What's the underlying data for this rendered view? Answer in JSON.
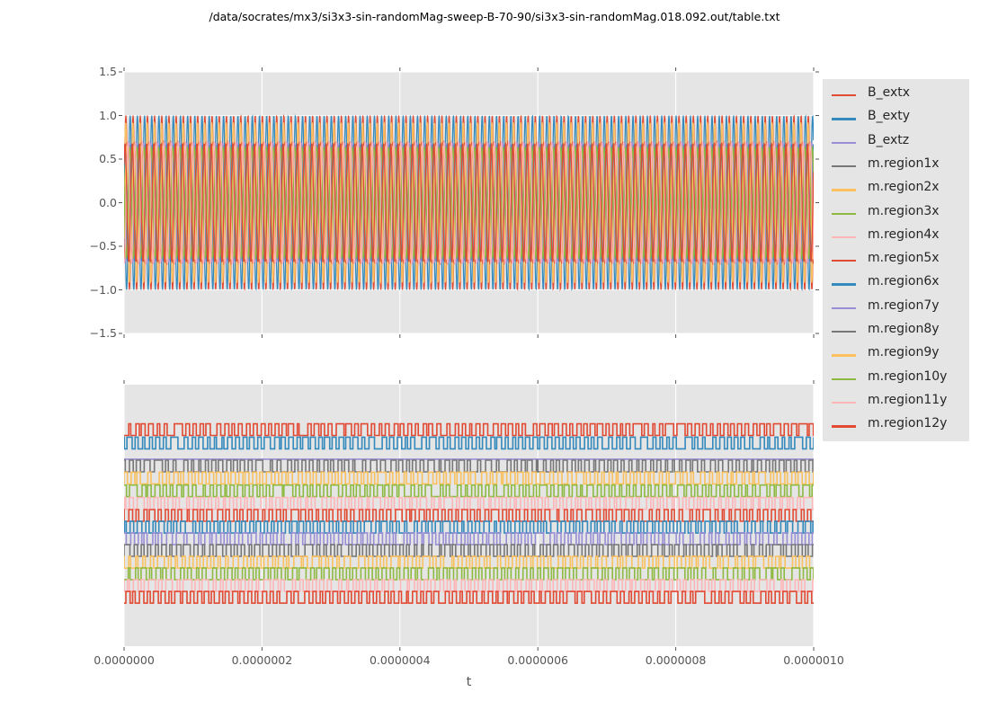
{
  "title": "/data/socrates/mx3/si3x3-sin-randomMag-sweep-B-70-90/si3x3-sin-randomMag.018.092.out/table.txt",
  "xlabel": "t",
  "style": {
    "figure_bg": "#ffffff",
    "axes_bg": "#e5e5e5",
    "grid_color": "#ffffff",
    "tick_color": "#555555",
    "tick_label_color": "#555555",
    "title_color": "#000000",
    "legend_bg": "#e5e5e5",
    "legend_text_color": "#262626"
  },
  "axes": {
    "x_tick_labels": [
      "0.0000000",
      "0.0000002",
      "0.0000004",
      "0.0000006",
      "0.0000008",
      "0.0000010"
    ],
    "top_y_tick_labels": [
      "1.5",
      "1.0",
      "0.5",
      "0.0",
      "−0.5",
      "−1.0",
      "−1.5"
    ],
    "bottom_y_tick_labels": []
  },
  "legend": {
    "items": [
      {
        "label": "B_extx",
        "color": "#E24A33"
      },
      {
        "label": "B_exty",
        "color": "#348ABD"
      },
      {
        "label": "B_extz",
        "color": "#988ED5"
      },
      {
        "label": "m.region1x",
        "color": "#777777"
      },
      {
        "label": "m.region2x",
        "color": "#FBC15E"
      },
      {
        "label": "m.region3x",
        "color": "#8EBA42"
      },
      {
        "label": "m.region4x",
        "color": "#FFB5B8"
      },
      {
        "label": "m.region5x",
        "color": "#E24A33"
      },
      {
        "label": "m.region6x",
        "color": "#348ABD"
      },
      {
        "label": "m.region7y",
        "color": "#988ED5"
      },
      {
        "label": "m.region8y",
        "color": "#777777"
      },
      {
        "label": "m.region9y",
        "color": "#FBC15E"
      },
      {
        "label": "m.region10y",
        "color": "#8EBA42"
      },
      {
        "label": "m.region11y",
        "color": "#FFB5B8"
      },
      {
        "label": "m.region12y",
        "color": "#E24A33"
      }
    ]
  },
  "chart_data": [
    {
      "type": "line",
      "subplot": "top",
      "xlim": [
        0,
        1e-06
      ],
      "ylim": [
        -1.5,
        1.5
      ],
      "x_ticks": [
        0,
        2e-07,
        4e-07,
        6e-07,
        8e-07,
        1e-06
      ],
      "y_ticks": [
        1.5,
        1.0,
        0.5,
        0.0,
        -0.5,
        -1.0,
        -1.5
      ],
      "grid": "both",
      "legend_position": "outside-right",
      "note": "dense sinusoidal oscillations, ~96 cycles over 1e-6 s, envelope -1..1",
      "series": [
        {
          "name": "B_extx",
          "color": "#E24A33",
          "waveform": "sine",
          "amplitude": 1.0,
          "cycles": 96,
          "phase": 0.0
        },
        {
          "name": "B_exty",
          "color": "#348ABD",
          "waveform": "sine",
          "amplitude": 1.0,
          "cycles": 96,
          "phase": 2.5
        },
        {
          "name": "B_extz",
          "color": "#988ED5",
          "waveform": "sine",
          "amplitude": 0.65,
          "cycles": 96,
          "phase": 1.2
        },
        {
          "name": "m.region1x",
          "color": "#777777",
          "waveform": "sine",
          "amplitude": 0.68,
          "cycles": 96,
          "phase": 0.4
        },
        {
          "name": "m.region2x",
          "color": "#FBC15E",
          "waveform": "sine",
          "amplitude": 0.92,
          "cycles": 96,
          "phase": 0.15
        },
        {
          "name": "m.region3x",
          "color": "#8EBA42",
          "waveform": "sine",
          "amplitude": 0.66,
          "cycles": 96,
          "phase": 2.1
        },
        {
          "name": "m.region4x",
          "color": "#FFB5B8",
          "waveform": "sine",
          "amplitude": 0.64,
          "cycles": 96,
          "phase": 3.9
        },
        {
          "name": "m.region5x",
          "color": "#E24A33",
          "waveform": "sine",
          "amplitude": 0.7,
          "cycles": 96,
          "phase": 5.1
        },
        {
          "name": "m.region6x",
          "color": "#348ABD",
          "waveform": "sine",
          "amplitude": 0.67,
          "cycles": 96,
          "phase": 1.7
        },
        {
          "name": "m.region7y",
          "color": "#988ED5",
          "waveform": "sine",
          "amplitude": 0.69,
          "cycles": 96,
          "phase": 3.2
        },
        {
          "name": "m.region8y",
          "color": "#777777",
          "waveform": "sine",
          "amplitude": 0.66,
          "cycles": 96,
          "phase": 0.9
        },
        {
          "name": "m.region9y",
          "color": "#FBC15E",
          "waveform": "sine",
          "amplitude": 0.65,
          "cycles": 96,
          "phase": 5.6
        },
        {
          "name": "m.region10y",
          "color": "#8EBA42",
          "waveform": "sine",
          "amplitude": 0.64,
          "cycles": 96,
          "phase": 2.8
        },
        {
          "name": "m.region11y",
          "color": "#FFB5B8",
          "waveform": "sine",
          "amplitude": 0.7,
          "cycles": 96,
          "phase": 4.5
        },
        {
          "name": "m.region12y",
          "color": "#E24A33",
          "waveform": "sine",
          "amplitude": 0.68,
          "cycles": 96,
          "phase": 0.7
        }
      ]
    },
    {
      "type": "line",
      "subplot": "bottom",
      "xlim": [
        0,
        1e-06
      ],
      "ylim": [
        0,
        1
      ],
      "x_ticks": [
        0,
        2e-07,
        4e-07,
        6e-07,
        8e-07,
        1e-06
      ],
      "y_ticks": [],
      "grid": "x",
      "note": "square-wave switching traces stacked by offset; B_extz constant",
      "series": [
        {
          "name": "B_extx",
          "color": "#E24A33",
          "waveform": "square",
          "offset": 0.828,
          "amplitude": 0.0223,
          "cycles": 96,
          "phase": 0.0,
          "seed": 1
        },
        {
          "name": "B_exty",
          "color": "#348ABD",
          "waveform": "square",
          "offset": 0.777,
          "amplitude": 0.0223,
          "cycles": 96,
          "phase": 0.5,
          "seed": 2
        },
        {
          "name": "B_extz",
          "color": "#988ED5",
          "waveform": "constant",
          "offset": 0.715,
          "amplitude": 0.0,
          "cycles": 96,
          "phase": 0.0,
          "seed": 3
        },
        {
          "name": "m.region1x",
          "color": "#777777",
          "waveform": "square",
          "offset": 0.689,
          "amplitude": 0.0223,
          "cycles": 96,
          "phase": 0.25,
          "seed": 4
        },
        {
          "name": "m.region2x",
          "color": "#FBC15E",
          "waveform": "square",
          "offset": 0.643,
          "amplitude": 0.0223,
          "cycles": 96,
          "phase": 0.6,
          "seed": 5
        },
        {
          "name": "m.region3x",
          "color": "#8EBA42",
          "waveform": "square",
          "offset": 0.594,
          "amplitude": 0.0223,
          "cycles": 96,
          "phase": 0.1,
          "seed": 6
        },
        {
          "name": "m.region4x",
          "color": "#FFB5B8",
          "waveform": "square",
          "offset": 0.546,
          "amplitude": 0.0223,
          "cycles": 96,
          "phase": 0.8,
          "seed": 7
        },
        {
          "name": "m.region5x",
          "color": "#E24A33",
          "waveform": "square",
          "offset": 0.5,
          "amplitude": 0.0223,
          "cycles": 96,
          "phase": 0.35,
          "seed": 8
        },
        {
          "name": "m.region6x",
          "color": "#348ABD",
          "waveform": "square",
          "offset": 0.455,
          "amplitude": 0.0223,
          "cycles": 96,
          "phase": 0.55,
          "seed": 9
        },
        {
          "name": "m.region7y",
          "color": "#988ED5",
          "waveform": "square",
          "offset": 0.411,
          "amplitude": 0.0223,
          "cycles": 96,
          "phase": 0.15,
          "seed": 10
        },
        {
          "name": "m.region8y",
          "color": "#777777",
          "waveform": "square",
          "offset": 0.366,
          "amplitude": 0.0223,
          "cycles": 96,
          "phase": 0.7,
          "seed": 11
        },
        {
          "name": "m.region9y",
          "color": "#FBC15E",
          "waveform": "square",
          "offset": 0.321,
          "amplitude": 0.0223,
          "cycles": 96,
          "phase": 0.45,
          "seed": 12
        },
        {
          "name": "m.region10y",
          "color": "#8EBA42",
          "waveform": "square",
          "offset": 0.277,
          "amplitude": 0.0223,
          "cycles": 96,
          "phase": 0.05,
          "seed": 13
        },
        {
          "name": "m.region11y",
          "color": "#FFB5B8",
          "waveform": "square",
          "offset": 0.232,
          "amplitude": 0.0223,
          "cycles": 96,
          "phase": 0.65,
          "seed": 14
        },
        {
          "name": "m.region12y",
          "color": "#E24A33",
          "waveform": "square",
          "offset": 0.187,
          "amplitude": 0.0223,
          "cycles": 96,
          "phase": 0.3,
          "seed": 15
        }
      ]
    }
  ]
}
